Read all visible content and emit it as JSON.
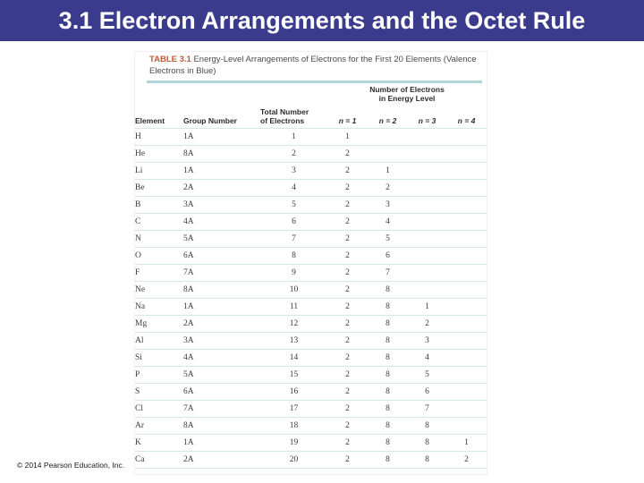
{
  "slide": {
    "title": "3.1 Electron Arrangements and the Octet Rule",
    "footer": "© 2014 Pearson Education, Inc."
  },
  "table": {
    "label": "TABLE 3.1",
    "caption": "Energy-Level Arrangements of Electrons for the First 20 Elements (Valence Electrons in Blue)",
    "col_headers": {
      "element": "Element",
      "group_number": "Group Number",
      "total_number_line1": "Total Number",
      "total_number_line2": "of Electrons",
      "energy_span_line1": "Number of Electrons",
      "energy_span_line2": "in Energy Level",
      "n1": "n = 1",
      "n2": "n = 2",
      "n3": "n = 3",
      "n4": "n = 4"
    },
    "rows": [
      {
        "element": "H",
        "group": "1A",
        "total": "1",
        "levels": [
          "1",
          "",
          "",
          ""
        ]
      },
      {
        "element": "He",
        "group": "8A",
        "total": "2",
        "levels": [
          "2",
          "",
          "",
          ""
        ]
      },
      {
        "element": "Li",
        "group": "1A",
        "total": "3",
        "levels": [
          "2",
          "1",
          "",
          ""
        ]
      },
      {
        "element": "Be",
        "group": "2A",
        "total": "4",
        "levels": [
          "2",
          "2",
          "",
          ""
        ]
      },
      {
        "element": "B",
        "group": "3A",
        "total": "5",
        "levels": [
          "2",
          "3",
          "",
          ""
        ]
      },
      {
        "element": "C",
        "group": "4A",
        "total": "6",
        "levels": [
          "2",
          "4",
          "",
          ""
        ]
      },
      {
        "element": "N",
        "group": "5A",
        "total": "7",
        "levels": [
          "2",
          "5",
          "",
          ""
        ]
      },
      {
        "element": "O",
        "group": "6A",
        "total": "8",
        "levels": [
          "2",
          "6",
          "",
          ""
        ]
      },
      {
        "element": "F",
        "group": "7A",
        "total": "9",
        "levels": [
          "2",
          "7",
          "",
          ""
        ]
      },
      {
        "element": "Ne",
        "group": "8A",
        "total": "10",
        "levels": [
          "2",
          "8",
          "",
          ""
        ]
      },
      {
        "element": "Na",
        "group": "1A",
        "total": "11",
        "levels": [
          "2",
          "8",
          "1",
          ""
        ]
      },
      {
        "element": "Mg",
        "group": "2A",
        "total": "12",
        "levels": [
          "2",
          "8",
          "2",
          ""
        ]
      },
      {
        "element": "Al",
        "group": "3A",
        "total": "13",
        "levels": [
          "2",
          "8",
          "3",
          ""
        ]
      },
      {
        "element": "Si",
        "group": "4A",
        "total": "14",
        "levels": [
          "2",
          "8",
          "4",
          ""
        ]
      },
      {
        "element": "P",
        "group": "5A",
        "total": "15",
        "levels": [
          "2",
          "8",
          "5",
          ""
        ]
      },
      {
        "element": "S",
        "group": "6A",
        "total": "16",
        "levels": [
          "2",
          "8",
          "6",
          ""
        ]
      },
      {
        "element": "Cl",
        "group": "7A",
        "total": "17",
        "levels": [
          "2",
          "8",
          "7",
          ""
        ]
      },
      {
        "element": "Ar",
        "group": "8A",
        "total": "18",
        "levels": [
          "2",
          "8",
          "8",
          ""
        ]
      },
      {
        "element": "K",
        "group": "1A",
        "total": "19",
        "levels": [
          "2",
          "8",
          "8",
          "1"
        ]
      },
      {
        "element": "Ca",
        "group": "2A",
        "total": "20",
        "levels": [
          "2",
          "8",
          "8",
          "2"
        ]
      }
    ]
  },
  "colors": {
    "titlebar_bg": "#3b3b8e",
    "title_text": "#ffffff",
    "table_label": "#c05a3a",
    "caption_text": "#4b4b4b",
    "rule_teal": "#b2d4d9",
    "row_line": "#d6e7ea",
    "header_text": "#2b2b2b",
    "data_text": "#3a3a3a",
    "valence_blue": "#5f7fae",
    "footer_text": "#1a1a1a"
  }
}
